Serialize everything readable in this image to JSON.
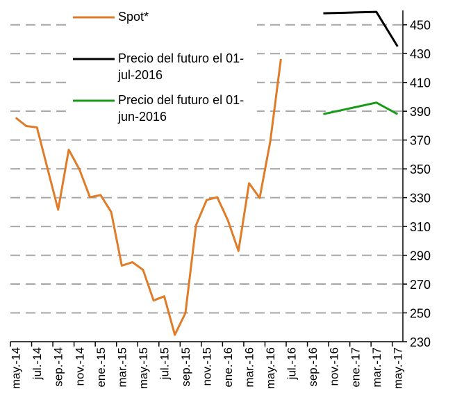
{
  "chart_data": {
    "type": "line",
    "categories": [
      "may.-14",
      null,
      "jul.-14",
      null,
      "sep.-14",
      null,
      "nov.-14",
      null,
      "ene.-15",
      null,
      "mar.-15",
      null,
      "may.-15",
      null,
      "jul.-15",
      null,
      "sep.-15",
      null,
      "nov.-15",
      null,
      "ene.-16",
      null,
      "mar.-16",
      null,
      "may.-16",
      null,
      "jul.-16",
      null,
      "sep.-16",
      null,
      "nov.-16",
      null,
      "ene.-17",
      null,
      "mar.-17",
      null,
      "may.-17"
    ],
    "series": [
      {
        "name": "Spot*",
        "color": "#e07b28",
        "values": [
          385.5,
          379.7,
          378.8,
          350.2,
          321.6,
          363.3,
          349.7,
          330.3,
          331.8,
          320.1,
          282.8,
          285.2,
          279.9,
          258.6,
          261.5,
          234.8,
          249.9,
          310.9,
          328.4,
          330.3,
          314.3,
          293,
          340,
          329.8,
          369.1,
          426.3,
          null,
          null,
          null,
          null,
          null,
          null,
          null,
          null,
          null,
          null,
          null
        ]
      },
      {
        "name": "Precio del futuro el 01-jul-2016",
        "color": "#000000",
        "values": [
          null,
          null,
          null,
          null,
          null,
          null,
          null,
          null,
          null,
          null,
          null,
          null,
          null,
          null,
          null,
          null,
          null,
          null,
          null,
          null,
          null,
          null,
          null,
          null,
          null,
          null,
          null,
          null,
          null,
          458,
          458.2,
          458.4,
          458.6,
          458.8,
          459,
          447,
          435
        ]
      },
      {
        "name": "Precio del futuro el 01-jun-2016",
        "color": "#1a9a1a",
        "values": [
          null,
          null,
          null,
          null,
          null,
          null,
          null,
          null,
          null,
          null,
          null,
          null,
          null,
          null,
          null,
          null,
          null,
          null,
          null,
          null,
          null,
          null,
          null,
          null,
          null,
          null,
          null,
          null,
          null,
          388,
          389.6,
          391.2,
          392.8,
          394.4,
          396,
          392,
          388
        ]
      }
    ],
    "ylim": [
      230,
      460
    ],
    "yticks": [
      230,
      250,
      270,
      290,
      310,
      330,
      350,
      370,
      390,
      410,
      430,
      450
    ],
    "grid": true,
    "y_axis_side": "right"
  }
}
